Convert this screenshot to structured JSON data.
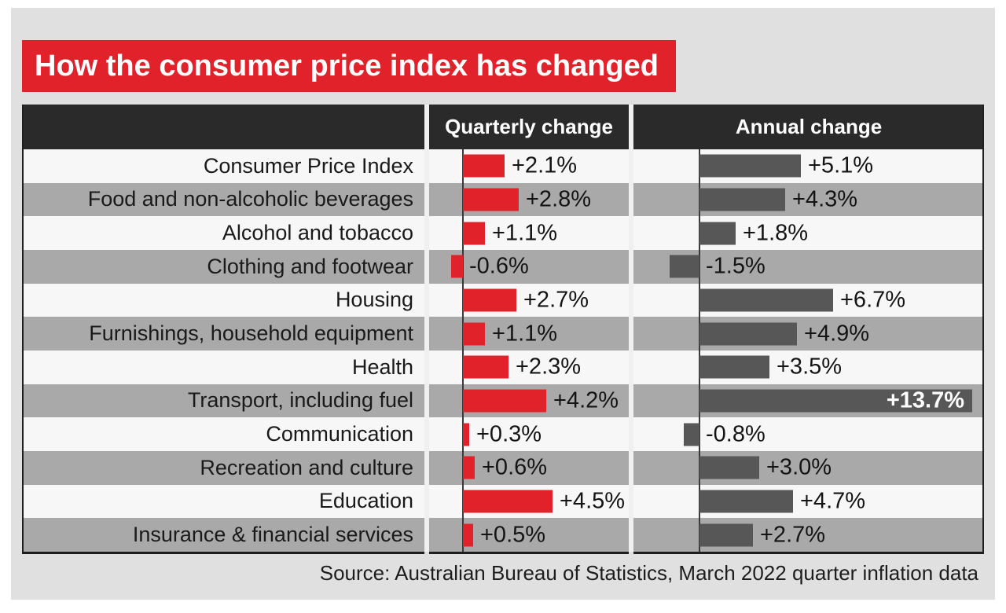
{
  "title": "How the consumer price index has changed",
  "source": "Source: Australian Bureau of Statistics, March 2022 quarter inflation data",
  "table": {
    "quarterly_header": "Quarterly change",
    "annual_header": "Annual change",
    "rows": [
      {
        "label": "Consumer Price Index",
        "quarterly": 2.1,
        "quarterly_label": "+2.1%",
        "annual": 5.1,
        "annual_label": "+5.1%"
      },
      {
        "label": "Food and non-alcoholic beverages",
        "quarterly": 2.8,
        "quarterly_label": "+2.8%",
        "annual": 4.3,
        "annual_label": "+4.3%"
      },
      {
        "label": "Alcohol and tobacco",
        "quarterly": 1.1,
        "quarterly_label": "+1.1%",
        "annual": 1.8,
        "annual_label": "+1.8%"
      },
      {
        "label": "Clothing and footwear",
        "quarterly": -0.6,
        "quarterly_label": "-0.6%",
        "annual": -1.5,
        "annual_label": "-1.5%"
      },
      {
        "label": "Housing",
        "quarterly": 2.7,
        "quarterly_label": "+2.7%",
        "annual": 6.7,
        "annual_label": "+6.7%"
      },
      {
        "label": "Furnishings, household equipment",
        "quarterly": 1.1,
        "quarterly_label": "+1.1%",
        "annual": 4.9,
        "annual_label": "+4.9%"
      },
      {
        "label": "Health",
        "quarterly": 2.3,
        "quarterly_label": "+2.3%",
        "annual": 3.5,
        "annual_label": "+3.5%"
      },
      {
        "label": "Transport, including fuel",
        "quarterly": 4.2,
        "quarterly_label": "+4.2%",
        "annual": 13.7,
        "annual_label": "+13.7%",
        "annual_label_inside": true
      },
      {
        "label": "Communication",
        "quarterly": 0.3,
        "quarterly_label": "+0.3%",
        "annual": -0.8,
        "annual_label": "-0.8%"
      },
      {
        "label": "Recreation and culture",
        "quarterly": 0.6,
        "quarterly_label": "+0.6%",
        "annual": 3.0,
        "annual_label": "+3.0%"
      },
      {
        "label": "Education",
        "quarterly": 4.5,
        "quarterly_label": "+4.5%",
        "annual": 4.7,
        "annual_label": "+4.7%"
      },
      {
        "label": "Insurance & financial services",
        "quarterly": 0.5,
        "quarterly_label": "+0.5%",
        "annual": 2.7,
        "annual_label": "+2.7%"
      }
    ]
  },
  "colors": {
    "banner_red": "#e2222a",
    "bar_red": "#e2222a",
    "bar_dark": "#575757",
    "header_bg": "#2b2a2b",
    "row_light": "#f7f7f7",
    "row_gray": "#a9a9a9",
    "canvas_bg": "#e1e0e0",
    "axis_line": "#3a3a3a"
  },
  "chart_data": {
    "type": "bar",
    "orientation": "horizontal",
    "title": "How the consumer price index has changed",
    "categories": [
      "Consumer Price Index",
      "Food and non-alcoholic beverages",
      "Alcohol and tobacco",
      "Clothing and footwear",
      "Housing",
      "Furnishings, household equipment",
      "Health",
      "Transport, including fuel",
      "Communication",
      "Recreation and culture",
      "Education",
      "Insurance & financial services"
    ],
    "series": [
      {
        "name": "Quarterly change",
        "values": [
          2.1,
          2.8,
          1.1,
          -0.6,
          2.7,
          1.1,
          2.3,
          4.2,
          0.3,
          0.6,
          4.5,
          0.5
        ]
      },
      {
        "name": "Annual change",
        "values": [
          5.1,
          4.3,
          1.8,
          -1.5,
          6.7,
          4.9,
          3.5,
          13.7,
          -0.8,
          3.0,
          4.7,
          2.7
        ]
      }
    ],
    "value_unit": "%",
    "value_format": "signed, one decimal, percent",
    "legend_position": "column headers",
    "grid": false,
    "source": "Source: Australian Bureau of Statistics, March 2022 quarter inflation data"
  }
}
